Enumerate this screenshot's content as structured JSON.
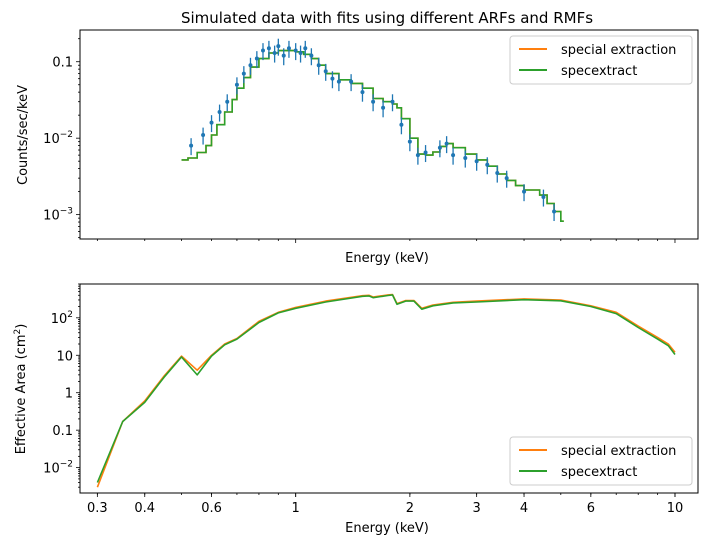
{
  "chart_data": [
    {
      "type": "line",
      "style": "step with error-bar points",
      "title": "Simulated data with fits using different ARFs and RMFs",
      "xlabel": "Energy (keV)",
      "ylabel": "Counts/sec/keV",
      "xscale": "log",
      "yscale": "log",
      "xlim": [
        0.27,
        11.5
      ],
      "ylim": [
        0.00048,
        0.26
      ],
      "show_xticklabels": false,
      "yticks": [
        {
          "value": 0.001,
          "base": "10",
          "exp": "−3"
        },
        {
          "value": 0.01,
          "base": "10",
          "exp": "−2"
        },
        {
          "value": 0.1,
          "label": "0.1"
        }
      ],
      "legend_position": "top-right",
      "legend": [
        {
          "label": "special extraction",
          "color": "#ff7f0e"
        },
        {
          "label": "specextract",
          "color": "#2ca02c"
        }
      ],
      "model": {
        "x": [
          0.5,
          0.52,
          0.55,
          0.58,
          0.6,
          0.62,
          0.65,
          0.68,
          0.7,
          0.73,
          0.76,
          0.8,
          0.85,
          0.9,
          0.95,
          1.0,
          1.05,
          1.1,
          1.15,
          1.2,
          1.3,
          1.4,
          1.5,
          1.6,
          1.7,
          1.8,
          1.85,
          1.9,
          2.0,
          2.1,
          2.2,
          2.3,
          2.4,
          2.5,
          2.6,
          2.8,
          3.0,
          3.2,
          3.4,
          3.6,
          3.8,
          4.0,
          4.2,
          4.4,
          4.6,
          4.8,
          5.0
        ],
        "series": [
          {
            "name": "special extraction",
            "color": "#ff7f0e",
            "values": [
              0.0052,
              0.0055,
              0.0065,
              0.008,
              0.011,
              0.015,
              0.022,
              0.032,
              0.045,
              0.062,
              0.085,
              0.11,
              0.13,
              0.14,
              0.14,
              0.135,
              0.125,
              0.11,
              0.09,
              0.07,
              0.058,
              0.052,
              0.045,
              0.033,
              0.03,
              0.028,
              0.025,
              0.018,
              0.01,
              0.0062,
              0.006,
              0.0066,
              0.0078,
              0.0085,
              0.0075,
              0.0062,
              0.0052,
              0.0043,
              0.0034,
              0.0028,
              0.0024,
              0.0021,
              0.0021,
              0.0018,
              0.0014,
              0.0011,
              0.00082
            ]
          },
          {
            "name": "specextract",
            "color": "#2ca02c",
            "values": [
              0.0052,
              0.0055,
              0.0065,
              0.008,
              0.011,
              0.015,
              0.022,
              0.032,
              0.045,
              0.062,
              0.085,
              0.11,
              0.13,
              0.14,
              0.14,
              0.135,
              0.125,
              0.11,
              0.09,
              0.07,
              0.058,
              0.052,
              0.045,
              0.033,
              0.03,
              0.028,
              0.025,
              0.018,
              0.01,
              0.0062,
              0.006,
              0.0066,
              0.0078,
              0.0085,
              0.0075,
              0.0062,
              0.0052,
              0.0043,
              0.0034,
              0.0028,
              0.0024,
              0.0021,
              0.0021,
              0.0018,
              0.0014,
              0.0011,
              0.00082
            ]
          }
        ]
      },
      "data_points": {
        "name": "data",
        "color": "#1f77b4",
        "x": [
          0.53,
          0.57,
          0.6,
          0.63,
          0.66,
          0.7,
          0.73,
          0.76,
          0.79,
          0.82,
          0.85,
          0.88,
          0.9,
          0.93,
          0.96,
          1.0,
          1.03,
          1.06,
          1.1,
          1.15,
          1.2,
          1.25,
          1.3,
          1.4,
          1.5,
          1.6,
          1.7,
          1.8,
          1.9,
          2.0,
          2.1,
          2.2,
          2.4,
          2.5,
          2.6,
          2.8,
          3.0,
          3.2,
          3.4,
          3.6,
          4.0,
          4.5,
          4.8
        ],
        "y": [
          0.008,
          0.011,
          0.016,
          0.022,
          0.03,
          0.05,
          0.07,
          0.09,
          0.11,
          0.14,
          0.15,
          0.13,
          0.16,
          0.12,
          0.15,
          0.14,
          0.13,
          0.15,
          0.12,
          0.09,
          0.075,
          0.06,
          0.055,
          0.055,
          0.04,
          0.03,
          0.025,
          0.03,
          0.015,
          0.009,
          0.006,
          0.0065,
          0.0075,
          0.0085,
          0.006,
          0.0055,
          0.005,
          0.0045,
          0.0035,
          0.003,
          0.002,
          0.0017,
          0.0011
        ]
      }
    },
    {
      "type": "line",
      "xlabel": "Energy (keV)",
      "ylabel_prefix": "Effective Area (cm",
      "ylabel_sup": "2",
      "ylabel_suffix": ")",
      "xscale": "log",
      "yscale": "log",
      "xlim": [
        0.27,
        11.5
      ],
      "ylim": [
        0.0021,
        800
      ],
      "xticks": [
        {
          "value": 0.3,
          "label": "0.3"
        },
        {
          "value": 0.4,
          "label": "0.4"
        },
        {
          "value": 0.6,
          "label": "0.6"
        },
        {
          "value": 1,
          "label": "1"
        },
        {
          "value": 2,
          "label": "2"
        },
        {
          "value": 3,
          "label": "3"
        },
        {
          "value": 4,
          "label": "4"
        },
        {
          "value": 6,
          "label": "6"
        },
        {
          "value": 10,
          "label": "10"
        }
      ],
      "yticks": [
        {
          "value": 0.01,
          "base": "10",
          "exp": "−2"
        },
        {
          "value": 0.1,
          "label": "0.1"
        },
        {
          "value": 1,
          "label": "1"
        },
        {
          "value": 10,
          "label": "10"
        },
        {
          "value": 100,
          "base": "10",
          "exp": "2"
        }
      ],
      "legend_position": "bottom-right",
      "legend": [
        {
          "label": "special extraction",
          "color": "#ff7f0e"
        },
        {
          "label": "specextract",
          "color": "#2ca02c"
        }
      ],
      "x": [
        0.3,
        0.35,
        0.4,
        0.45,
        0.5,
        0.55,
        0.6,
        0.65,
        0.7,
        0.8,
        0.9,
        1.0,
        1.2,
        1.5,
        1.56,
        1.6,
        1.75,
        1.8,
        1.85,
        1.95,
        2.05,
        2.15,
        2.3,
        2.6,
        3.0,
        4.0,
        5.0,
        6.0,
        7.0,
        8.0,
        9.0,
        9.6,
        10.0
      ],
      "series": [
        {
          "name": "special extraction",
          "color": "#ff7f0e",
          "values": [
            0.003,
            0.17,
            0.6,
            2.8,
            9.5,
            4.0,
            10.0,
            20.0,
            28.0,
            80.0,
            140.0,
            190.0,
            280.0,
            390.0,
            400.0,
            360.0,
            410.0,
            420.0,
            240.0,
            290.0,
            290.0,
            180.0,
            220.0,
            260.0,
            280.0,
            320.0,
            300.0,
            210.0,
            140.0,
            60.0,
            30.0,
            20.0,
            12.0
          ]
        },
        {
          "name": "specextract",
          "color": "#2ca02c",
          "values": [
            0.004,
            0.17,
            0.55,
            2.6,
            9.0,
            3.0,
            9.5,
            19.0,
            27.0,
            75.0,
            135.0,
            180.0,
            265.0,
            375.0,
            385.0,
            345.0,
            395.0,
            410.0,
            230.0,
            280.0,
            280.0,
            170.0,
            210.0,
            250.0,
            265.0,
            305.0,
            285.0,
            200.0,
            130.0,
            55.0,
            27.0,
            18.0,
            10.5
          ]
        }
      ]
    }
  ]
}
